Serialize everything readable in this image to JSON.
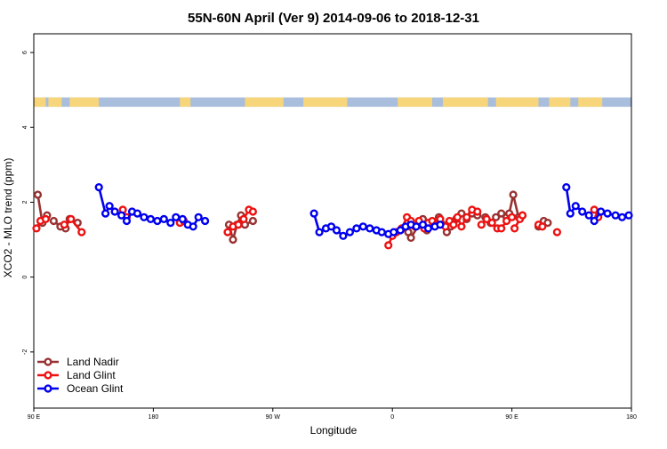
{
  "chart_data": {
    "type": "line",
    "title": "55N-60N April (Ver 9)   2014-09-06 to 2018-12-31",
    "xlabel": "Longitude",
    "ylabel": "XCO2 - MLO trend (ppm)",
    "xlim": [
      90,
      540
    ],
    "ylim": [
      -3.5,
      6.5
    ],
    "x_ticks": [
      {
        "value": 90,
        "label": "90 E"
      },
      {
        "value": 180,
        "label": "180"
      },
      {
        "value": 270,
        "label": "90 W"
      },
      {
        "value": 360,
        "label": "0"
      },
      {
        "value": 450,
        "label": "90 E"
      },
      {
        "value": 540,
        "label": "180"
      }
    ],
    "y_ticks": [
      {
        "value": -2,
        "label": "-2"
      },
      {
        "value": 0,
        "label": "0"
      },
      {
        "value": 2,
        "label": "2"
      },
      {
        "value": 4,
        "label": "4"
      },
      {
        "value": 6,
        "label": "6"
      }
    ],
    "land_band": {
      "y_min": 4.55,
      "y_max": 4.8,
      "ocean_color": "#a8bedc",
      "land_color": "#f7d57a"
    },
    "legend_position": "bottom-left",
    "series": [
      {
        "name": "Land Nadir",
        "color": "#983232",
        "segments": [
          [
            [
              93,
              2.2
            ],
            [
              96.5,
              1.45
            ],
            [
              100,
              1.65
            ]
          ],
          [
            [
              114,
              1.3
            ],
            [
              117,
              1.55
            ],
            [
              123,
              1.45
            ]
          ],
          [
            [
              105,
              1.5
            ],
            [
              110,
              1.35
            ]
          ],
          [
            [
              237,
              1.4
            ],
            [
              240,
              1.0
            ],
            [
              243,
              1.4
            ],
            [
              246,
              1.65
            ],
            [
              249,
              1.4
            ],
            [
              255,
              1.5
            ]
          ],
          [
            [
              372,
              1.2
            ],
            [
              374,
              1.05
            ],
            [
              380,
              1.4
            ],
            [
              383,
              1.55
            ],
            [
              386,
              1.25
            ],
            [
              392,
              1.4
            ],
            [
              395,
              1.6
            ]
          ],
          [
            [
              398,
              1.4
            ],
            [
              401,
              1.2
            ],
            [
              404,
              1.35
            ],
            [
              408,
              1.55
            ],
            [
              412,
              1.7
            ],
            [
              416,
              1.55
            ],
            [
              420,
              1.7
            ],
            [
              424,
              1.65
            ]
          ],
          [
            [
              430,
              1.6
            ],
            [
              434,
              1.45
            ],
            [
              438,
              1.6
            ],
            [
              442,
              1.7
            ],
            [
              446,
              1.6
            ],
            [
              448,
              1.7
            ],
            [
              451,
              2.2
            ],
            [
              455,
              1.6
            ],
            [
              458,
              1.65
            ]
          ],
          [
            [
              470,
              1.35
            ],
            [
              474,
              1.5
            ],
            [
              477,
              1.45
            ]
          ]
        ]
      },
      {
        "name": "Land Glint",
        "color": "#ee1111",
        "segments": [
          [
            [
              92,
              1.3
            ],
            [
              95,
              1.5
            ],
            [
              99,
              1.55
            ]
          ],
          [
            [
              113,
              1.4
            ],
            [
              118,
              1.55
            ],
            [
              126,
              1.2
            ]
          ],
          [
            [
              157,
              1.8
            ],
            [
              160,
              1.6
            ]
          ],
          [
            [
              200,
              1.45
            ],
            [
              203,
              1.5
            ]
          ],
          [
            [
              236,
              1.2
            ],
            [
              240,
              1.35
            ],
            [
              244,
              1.4
            ],
            [
              248,
              1.55
            ],
            [
              252,
              1.8
            ],
            [
              255,
              1.75
            ]
          ],
          [
            [
              357,
              0.85
            ],
            [
              360,
              1.1
            ],
            [
              363,
              1.2
            ],
            [
              367,
              1.3
            ],
            [
              371,
              1.6
            ],
            [
              374,
              1.5
            ]
          ],
          [
            [
              377,
              1.35
            ],
            [
              380,
              1.5
            ],
            [
              384,
              1.3
            ],
            [
              387,
              1.45
            ],
            [
              390,
              1.5
            ],
            [
              393,
              1.4
            ],
            [
              396,
              1.55
            ]
          ],
          [
            [
              400,
              1.35
            ],
            [
              403,
              1.5
            ],
            [
              406,
              1.4
            ],
            [
              409,
              1.6
            ],
            [
              412,
              1.35
            ],
            [
              416,
              1.6
            ],
            [
              420,
              1.8
            ],
            [
              424,
              1.75
            ]
          ],
          [
            [
              427,
              1.4
            ],
            [
              431,
              1.55
            ],
            [
              435,
              1.45
            ],
            [
              439,
              1.3
            ],
            [
              442,
              1.3
            ],
            [
              446,
              1.5
            ],
            [
              450,
              1.6
            ]
          ],
          [
            [
              452,
              1.3
            ],
            [
              456,
              1.55
            ],
            [
              458,
              1.65
            ]
          ],
          [
            [
              470,
              1.4
            ],
            [
              473,
              1.35
            ]
          ],
          [
            [
              484,
              1.2
            ]
          ],
          [
            [
              512,
              1.8
            ],
            [
              515,
              1.6
            ]
          ]
        ]
      },
      {
        "name": "Ocean Glint",
        "color": "#0000ee",
        "segments": [
          [
            [
              139,
              2.4
            ],
            [
              144,
              1.7
            ],
            [
              147,
              1.9
            ],
            [
              151,
              1.75
            ],
            [
              156,
              1.65
            ],
            [
              160,
              1.5
            ],
            [
              164,
              1.75
            ],
            [
              168,
              1.7
            ],
            [
              173,
              1.6
            ],
            [
              178,
              1.55
            ],
            [
              183,
              1.5
            ],
            [
              188,
              1.55
            ],
            [
              193,
              1.45
            ],
            [
              197,
              1.6
            ],
            [
              202,
              1.55
            ],
            [
              206,
              1.4
            ],
            [
              210,
              1.35
            ],
            [
              214,
              1.6
            ],
            [
              219,
              1.5
            ]
          ],
          [
            [
              301,
              1.7
            ],
            [
              305,
              1.2
            ],
            [
              310,
              1.3
            ],
            [
              314,
              1.35
            ],
            [
              318,
              1.25
            ],
            [
              323,
              1.1
            ],
            [
              328,
              1.2
            ],
            [
              333,
              1.3
            ],
            [
              338,
              1.35
            ],
            [
              343,
              1.3
            ],
            [
              348,
              1.25
            ],
            [
              352,
              1.2
            ],
            [
              357,
              1.15
            ],
            [
              361,
              1.2
            ],
            [
              366,
              1.25
            ],
            [
              370,
              1.35
            ],
            [
              374,
              1.4
            ],
            [
              378,
              1.35
            ],
            [
              383,
              1.4
            ],
            [
              387,
              1.3
            ],
            [
              392,
              1.35
            ],
            [
              396,
              1.4
            ]
          ],
          [
            [
              491,
              2.4
            ],
            [
              494,
              1.7
            ],
            [
              498,
              1.9
            ],
            [
              503,
              1.75
            ],
            [
              508,
              1.65
            ],
            [
              512,
              1.5
            ],
            [
              517,
              1.75
            ],
            [
              522,
              1.7
            ],
            [
              528,
              1.65
            ],
            [
              533,
              1.6
            ],
            [
              538,
              1.65
            ]
          ]
        ]
      }
    ]
  }
}
